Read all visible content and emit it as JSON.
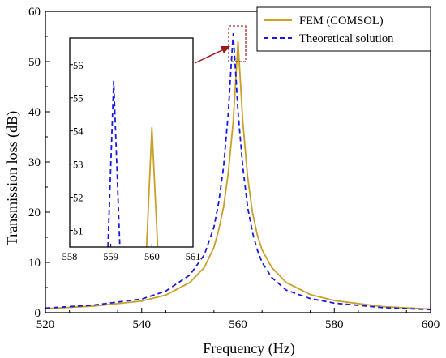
{
  "chart_data": [
    {
      "type": "line",
      "xlabel": "Frequency (Hz)",
      "ylabel": "Transmission loss (dB)",
      "xlim": [
        520,
        600
      ],
      "ylim": [
        0,
        60
      ],
      "xticks": [
        520,
        540,
        560,
        580,
        600
      ],
      "yticks": [
        0,
        10,
        20,
        30,
        40,
        50,
        60
      ],
      "legend": {
        "placement": "top-right"
      },
      "series": [
        {
          "name": "FEM (COMSOL)",
          "color": "#c8a02a",
          "style": "solid",
          "x": [
            520,
            530,
            540,
            545,
            550,
            553,
            555,
            556,
            557,
            558,
            559,
            559.5,
            560,
            560.5,
            561,
            562,
            563,
            564,
            565,
            567,
            570,
            575,
            580,
            590,
            600
          ],
          "y": [
            0.8,
            1.3,
            2.3,
            3.5,
            6.0,
            9.0,
            13.0,
            16.5,
            21.0,
            28.0,
            38.0,
            46.0,
            54.0,
            46.0,
            38.0,
            27.0,
            20.0,
            15.5,
            12.5,
            9.0,
            6.0,
            3.6,
            2.4,
            1.2,
            0.7
          ]
        },
        {
          "name": "Theoretical solution",
          "color": "#1a1adf",
          "style": "dashed",
          "x": [
            520,
            530,
            540,
            545,
            550,
            553,
            555,
            556,
            557,
            558,
            558.5,
            559,
            559.5,
            560,
            561,
            562,
            563,
            564,
            565,
            567,
            570,
            575,
            580,
            590,
            600
          ],
          "y": [
            0.9,
            1.5,
            2.7,
            4.3,
            7.5,
            11.5,
            17.0,
            22.0,
            29.0,
            40.0,
            48.0,
            55.5,
            48.0,
            40.0,
            29.0,
            21.0,
            16.0,
            12.5,
            10.0,
            7.0,
            4.5,
            2.8,
            1.9,
            1.0,
            0.6
          ]
        }
      ]
    },
    {
      "type": "line",
      "xlim": [
        558,
        561
      ],
      "ylim": [
        50.5,
        56.8
      ],
      "xticks": [
        558,
        559,
        560,
        561
      ],
      "yticks": [
        51,
        52,
        53,
        54,
        55,
        56
      ],
      "series": [
        {
          "name": "Theoretical solution",
          "color": "#1a1adf",
          "style": "dashed",
          "x": [
            558.93,
            559.07,
            559.22
          ],
          "y": [
            50.5,
            55.5,
            50.5
          ]
        },
        {
          "name": "FEM (COMSOL)",
          "color": "#c8a02a",
          "style": "solid",
          "x": [
            559.87,
            560.0,
            560.14
          ],
          "y": [
            50.5,
            54.1,
            50.5
          ]
        }
      ]
    }
  ]
}
